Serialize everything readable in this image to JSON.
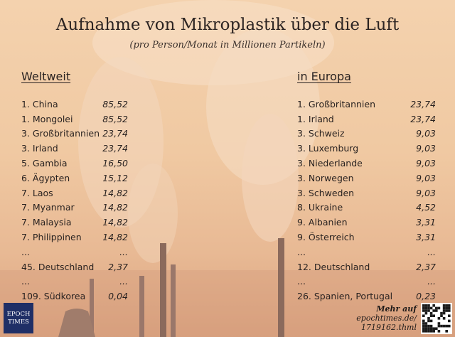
{
  "title": "Aufnahme von Mikroplastik über die Luft",
  "subtitle": "(pro Person/Monat in Millionen Partikeln)",
  "world": {
    "heading": "Weltweit",
    "rows": [
      {
        "label": "1. China",
        "value": "85,52"
      },
      {
        "label": "1. Mongolei",
        "value": "85,52"
      },
      {
        "label": "3. Großbritannien",
        "value": "23,74"
      },
      {
        "label": "3. Irland",
        "value": "23,74"
      },
      {
        "label": "5. Gambia",
        "value": "16,50"
      },
      {
        "label": "6. Ägypten",
        "value": "15,12"
      },
      {
        "label": "7. Laos",
        "value": "14,82"
      },
      {
        "label": "7. Myanmar",
        "value": "14,82"
      },
      {
        "label": "7. Malaysia",
        "value": "14,82"
      },
      {
        "label": "7. Philippinen",
        "value": "14,82"
      },
      {
        "label": "...",
        "value": "..."
      },
      {
        "label": "45. Deutschland",
        "value": "2,37"
      },
      {
        "label": "...",
        "value": "..."
      },
      {
        "label": "109. Südkorea",
        "value": "0,04"
      }
    ]
  },
  "europe": {
    "heading": "in Europa",
    "rows": [
      {
        "label": "1. Großbritannien",
        "value": "23,74"
      },
      {
        "label": "1. Irland",
        "value": "23,74"
      },
      {
        "label": "3. Schweiz",
        "value": "9,03"
      },
      {
        "label": "3. Luxemburg",
        "value": "9,03"
      },
      {
        "label": "3. Niederlande",
        "value": "9,03"
      },
      {
        "label": "3. Norwegen",
        "value": "9,03"
      },
      {
        "label": "3. Schweden",
        "value": "9,03"
      },
      {
        "label": "8. Ukraine",
        "value": "4,52"
      },
      {
        "label": "9. Albanien",
        "value": "3,31"
      },
      {
        "label": "9. Österreich",
        "value": "3,31"
      },
      {
        "label": "...",
        "value": "..."
      },
      {
        "label": "12. Deutschland",
        "value": "2,37"
      },
      {
        "label": "...",
        "value": "..."
      },
      {
        "label": "26. Spanien, Portugal",
        "value": "0,23"
      }
    ]
  },
  "logo": {
    "line1": "EPOCH",
    "line2": "TIMES"
  },
  "more": {
    "line1": "Mehr auf",
    "line2": "epochtimes.de/",
    "line3": "1719162.thml"
  },
  "colors": {
    "logo_bg": "#1f2f66",
    "background": "#f0c9a2",
    "text": "#2a2321"
  }
}
